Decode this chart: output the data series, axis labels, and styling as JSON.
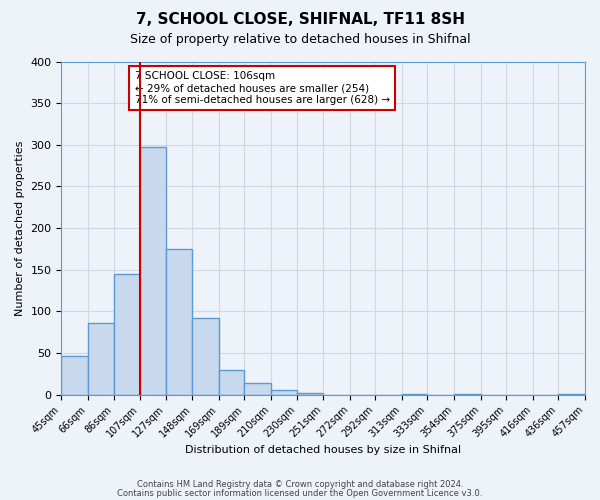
{
  "title": "7, SCHOOL CLOSE, SHIFNAL, TF11 8SH",
  "subtitle": "Size of property relative to detached houses in Shifnal",
  "xlabel": "Distribution of detached houses by size in Shifnal",
  "ylabel": "Number of detached properties",
  "bar_values": [
    47,
    86,
    145,
    297,
    175,
    92,
    30,
    14,
    6,
    2,
    0,
    0,
    0,
    1,
    0,
    1,
    0,
    0,
    0,
    1
  ],
  "bin_labels": [
    "45sqm",
    "66sqm",
    "86sqm",
    "107sqm",
    "127sqm",
    "148sqm",
    "169sqm",
    "189sqm",
    "210sqm",
    "230sqm",
    "251sqm",
    "272sqm",
    "292sqm",
    "313sqm",
    "333sqm",
    "354sqm",
    "375sqm",
    "395sqm",
    "416sqm",
    "436sqm",
    "457sqm"
  ],
  "bar_color": "#c9d9ed",
  "bar_edge_color": "#5b9bd5",
  "bar_edge_width": 1.0,
  "grid_color": "#d0d8e8",
  "bg_color": "#eef2f9",
  "ylim": [
    0,
    400
  ],
  "yticks": [
    0,
    50,
    100,
    150,
    200,
    250,
    300,
    350,
    400
  ],
  "property_line_x": 107,
  "property_line_color": "#cc0000",
  "annotation_text": "7 SCHOOL CLOSE: 106sqm\n← 29% of detached houses are smaller (254)\n71% of semi-detached houses are larger (628) →",
  "annotation_box_color": "#ffffff",
  "annotation_box_edge": "#cc0000",
  "footnote1": "Contains HM Land Registry data © Crown copyright and database right 2024.",
  "footnote2": "Contains public sector information licensed under the Open Government Licence v3.0.",
  "bin_edges": [
    45,
    66,
    86,
    107,
    127,
    148,
    169,
    189,
    210,
    230,
    251,
    272,
    292,
    313,
    333,
    354,
    375,
    395,
    416,
    436,
    457
  ]
}
